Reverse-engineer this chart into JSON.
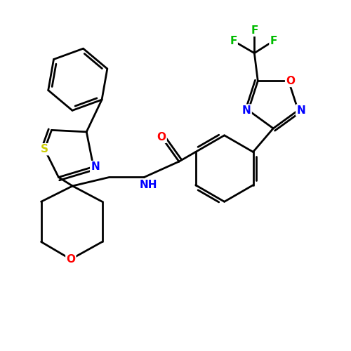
{
  "background_color": "#ffffff",
  "bond_color": "#000000",
  "atom_colors": {
    "N": "#0000ff",
    "O": "#ff0000",
    "S": "#cccc00",
    "F": "#00bb00",
    "C": "#000000",
    "H": "#000000"
  },
  "line_width": 2.0,
  "figsize": [
    5.0,
    5.0
  ],
  "dpi": 100
}
